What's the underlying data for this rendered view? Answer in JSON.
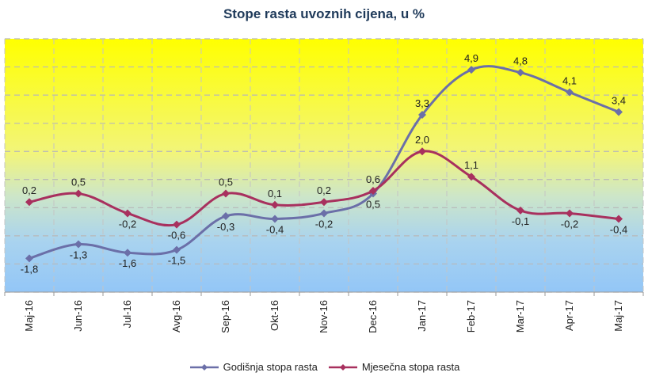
{
  "chart_data": {
    "type": "line",
    "title": "Stope rasta uvoznih cijena, u %",
    "xlabel": "",
    "ylabel": "",
    "categories": [
      "Maj-16",
      "Jun-16",
      "Jul-16",
      "Avg-16",
      "Sep-16",
      "Okt-16",
      "Nov-16",
      "Dec-16",
      "Jan-17",
      "Feb-17",
      "Mar-17",
      "Apr-17",
      "Maj-17"
    ],
    "series": [
      {
        "name": "Godišnja stopa rasta",
        "color": "#6b6fa8",
        "values": [
          -1.8,
          -1.3,
          -1.6,
          -1.5,
          -0.3,
          -0.4,
          -0.2,
          0.5,
          3.3,
          4.9,
          4.8,
          4.1,
          3.4
        ],
        "labels": [
          "-1,8",
          "-1,3",
          "-1,6",
          "-1,5",
          "-0,3",
          "-0,4",
          "-0,2",
          "0,5",
          "3,3",
          "4,9",
          "4,8",
          "4,1",
          "3,4"
        ]
      },
      {
        "name": "Mjesečna stopa rasta",
        "color": "#a8305e",
        "values": [
          0.2,
          0.5,
          -0.2,
          -0.6,
          0.5,
          0.1,
          0.2,
          0.6,
          2.0,
          1.1,
          -0.1,
          -0.2,
          -0.4
        ],
        "labels": [
          "0,2",
          "0,5",
          "-0,2",
          "-0,6",
          "0,5",
          "0,1",
          "0,2",
          "0,6",
          "2,0",
          "1,1",
          "-0,1",
          "-0,2",
          "-0,4"
        ]
      }
    ],
    "ylim": [
      -3,
      6
    ],
    "grid": true,
    "legend_position": "bottom",
    "background": "gradient yellow (top) to light blue (bottom)"
  },
  "legend": {
    "items": [
      {
        "label": "Godišnja stopa rasta"
      },
      {
        "label": "Mjesečna stopa rasta"
      }
    ]
  }
}
